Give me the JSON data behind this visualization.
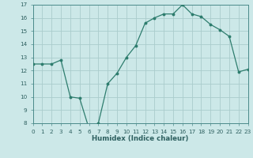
{
  "x": [
    0,
    1,
    2,
    3,
    4,
    5,
    6,
    7,
    8,
    9,
    10,
    11,
    12,
    13,
    14,
    15,
    16,
    17,
    18,
    19,
    20,
    21,
    22,
    23
  ],
  "y": [
    12.5,
    12.5,
    12.5,
    12.8,
    10.0,
    9.9,
    7.6,
    8.0,
    11.0,
    11.8,
    13.0,
    13.9,
    15.6,
    16.0,
    16.3,
    16.3,
    17.0,
    16.3,
    16.1,
    15.5,
    15.1,
    14.6,
    11.9,
    12.1
  ],
  "xlabel": "Humidex (Indice chaleur)",
  "line_color": "#2e7d6e",
  "bg_color": "#cce8e8",
  "grid_color": "#aacccc",
  "tick_color": "#2e6060",
  "spine_color": "#4a8a8a",
  "ylim": [
    8,
    17
  ],
  "xlim": [
    0,
    23
  ],
  "yticks": [
    8,
    9,
    10,
    11,
    12,
    13,
    14,
    15,
    16,
    17
  ],
  "xticks": [
    0,
    1,
    2,
    3,
    4,
    5,
    6,
    7,
    8,
    9,
    10,
    11,
    12,
    13,
    14,
    15,
    16,
    17,
    18,
    19,
    20,
    21,
    22,
    23
  ],
  "tick_fontsize": 5.2,
  "xlabel_fontsize": 6.2
}
